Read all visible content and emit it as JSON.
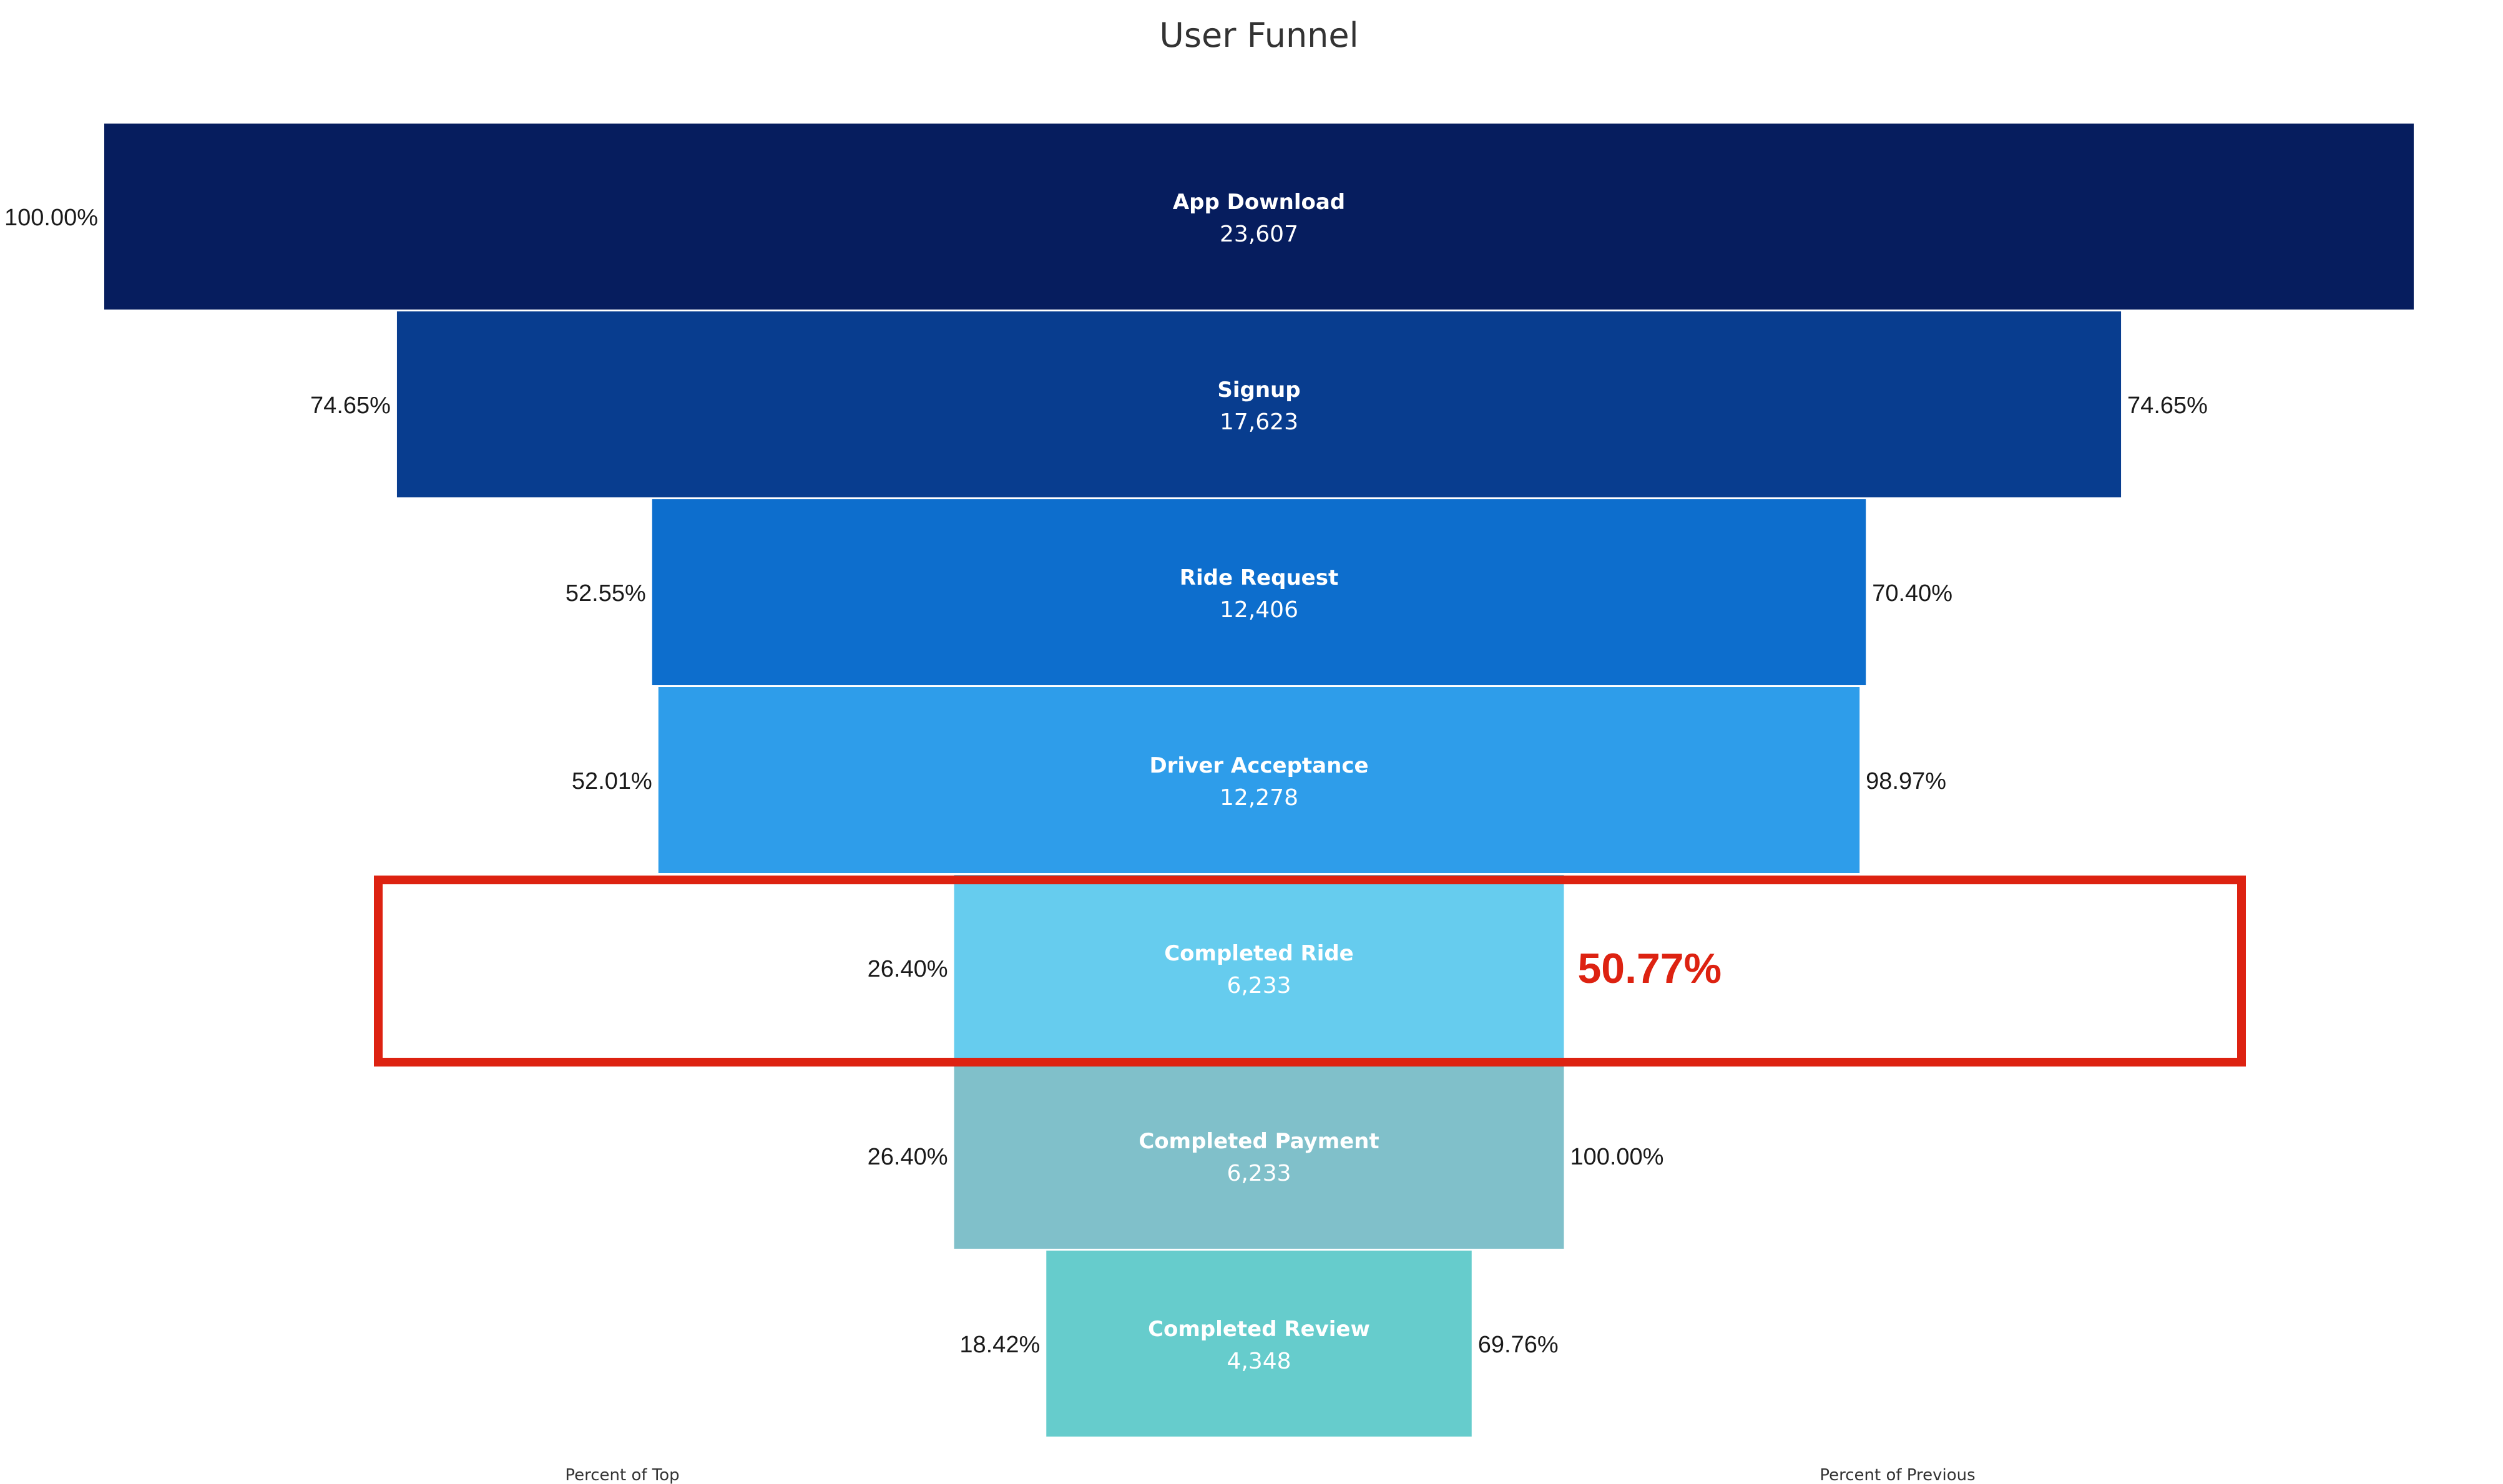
{
  "chart_data": {
    "type": "funnel",
    "title": "User Funnel",
    "left_caption": "Percent of Top",
    "right_caption": "Percent of Previous",
    "stages": [
      {
        "name": "App Download",
        "value": 23607,
        "value_label": "23,607",
        "pct_of_top": "100.00%",
        "pct_of_previous": "",
        "color": "#061D5E"
      },
      {
        "name": "Signup",
        "value": 17623,
        "value_label": "17,623",
        "pct_of_top": "74.65%",
        "pct_of_previous": "74.65%",
        "color": "#083D8F"
      },
      {
        "name": "Ride Request",
        "value": 12406,
        "value_label": "12,406",
        "pct_of_top": "52.55%",
        "pct_of_previous": "70.40%",
        "color": "#0D6ECD"
      },
      {
        "name": "Driver Acceptance",
        "value": 12278,
        "value_label": "12,278",
        "pct_of_top": "52.01%",
        "pct_of_previous": "98.97%",
        "color": "#2E9DEA"
      },
      {
        "name": "Completed Ride",
        "value": 6233,
        "value_label": "6,233",
        "pct_of_top": "26.40%",
        "pct_of_previous": "50.77%",
        "color": "#66CCEE",
        "highlight": true
      },
      {
        "name": "Completed Payment",
        "value": 6233,
        "value_label": "6,233",
        "pct_of_top": "26.40%",
        "pct_of_previous": "100.00%",
        "color": "#80C0CA"
      },
      {
        "name": "Completed Review",
        "value": 4348,
        "value_label": "4,348",
        "pct_of_top": "18.42%",
        "pct_of_previous": "69.76%",
        "color": "#66CCCC"
      }
    ],
    "highlight_color": "#DD2211"
  }
}
